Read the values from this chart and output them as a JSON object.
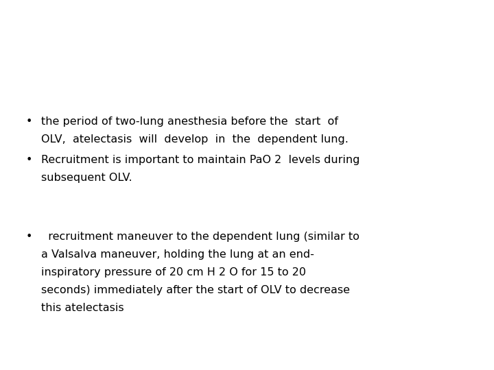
{
  "background_color": "#ffffff",
  "bullet1_line1": "the period of two-lung anesthesia before the  start  of",
  "bullet1_line2": "OLV,  atelectasis  will  develop  in  the  dependent lung.",
  "bullet2_line1": "Recruitment is important to maintain PaO 2  levels during",
  "bullet2_line2": "subsequent OLV.",
  "bullet3_line1": "  recruitment maneuver to the dependent lung (similar to",
  "bullet3_line2": "a Valsalva maneuver, holding the lung at an end-",
  "bullet3_line3": "inspiratory pressure of 20 cm H 2 O for 15 to 20",
  "bullet3_line4": "seconds) immediately after the start of OLV to decrease",
  "bullet3_line5": "this atelectasis",
  "font_size": 11.5,
  "font_color": "#000000",
  "font_family": "DejaVu Sans"
}
